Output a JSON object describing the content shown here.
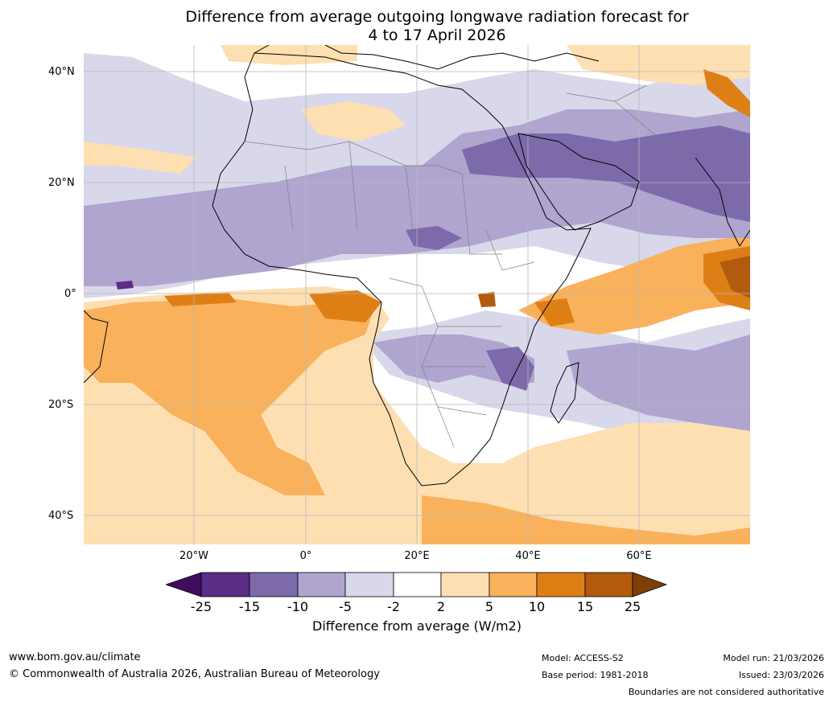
{
  "title": {
    "line1": "Difference from average outgoing longwave radiation forecast for",
    "line2": "4 to 17 April 2026"
  },
  "map": {
    "lat_labels": [
      "40°N",
      "20°N",
      "0°",
      "20°S",
      "40°S"
    ],
    "lon_labels": [
      "20°W",
      "0°",
      "20°E",
      "40°E",
      "60°E"
    ],
    "lat_range": [
      -45,
      45
    ],
    "lon_range": [
      -40,
      80
    ]
  },
  "colorbar": {
    "ticks": [
      "-25",
      "-15",
      "-10",
      "-5",
      "-2",
      "2",
      "5",
      "10",
      "15",
      "25"
    ],
    "label": "Difference from average (W/m2)",
    "colors": {
      "lt_m25": "#3f0d5e",
      "m25_m15": "#5a2d86",
      "m15_m10": "#7d6aaa",
      "m10_m5": "#afa5cf",
      "m5_m2": "#d8d8ea",
      "m2_2": "#ffffff",
      "p2_5": "#fddfb2",
      "p5_10": "#f9b15c",
      "p10_15": "#de7f16",
      "p15_25": "#b25a0e",
      "gt_25": "#7f3f09"
    }
  },
  "footer": {
    "url": "www.bom.gov.au/climate",
    "copyright": "© Commonwealth of Australia 2026, Australian Bureau of Meteorology",
    "model": "Model: ACCESS-S2",
    "base_period": "Base period: 1981-2018",
    "model_run": "Model run: 21/03/2026",
    "issued": "Issued: 23/03/2026",
    "boundaries": "Boundaries are not considered authoritative"
  }
}
